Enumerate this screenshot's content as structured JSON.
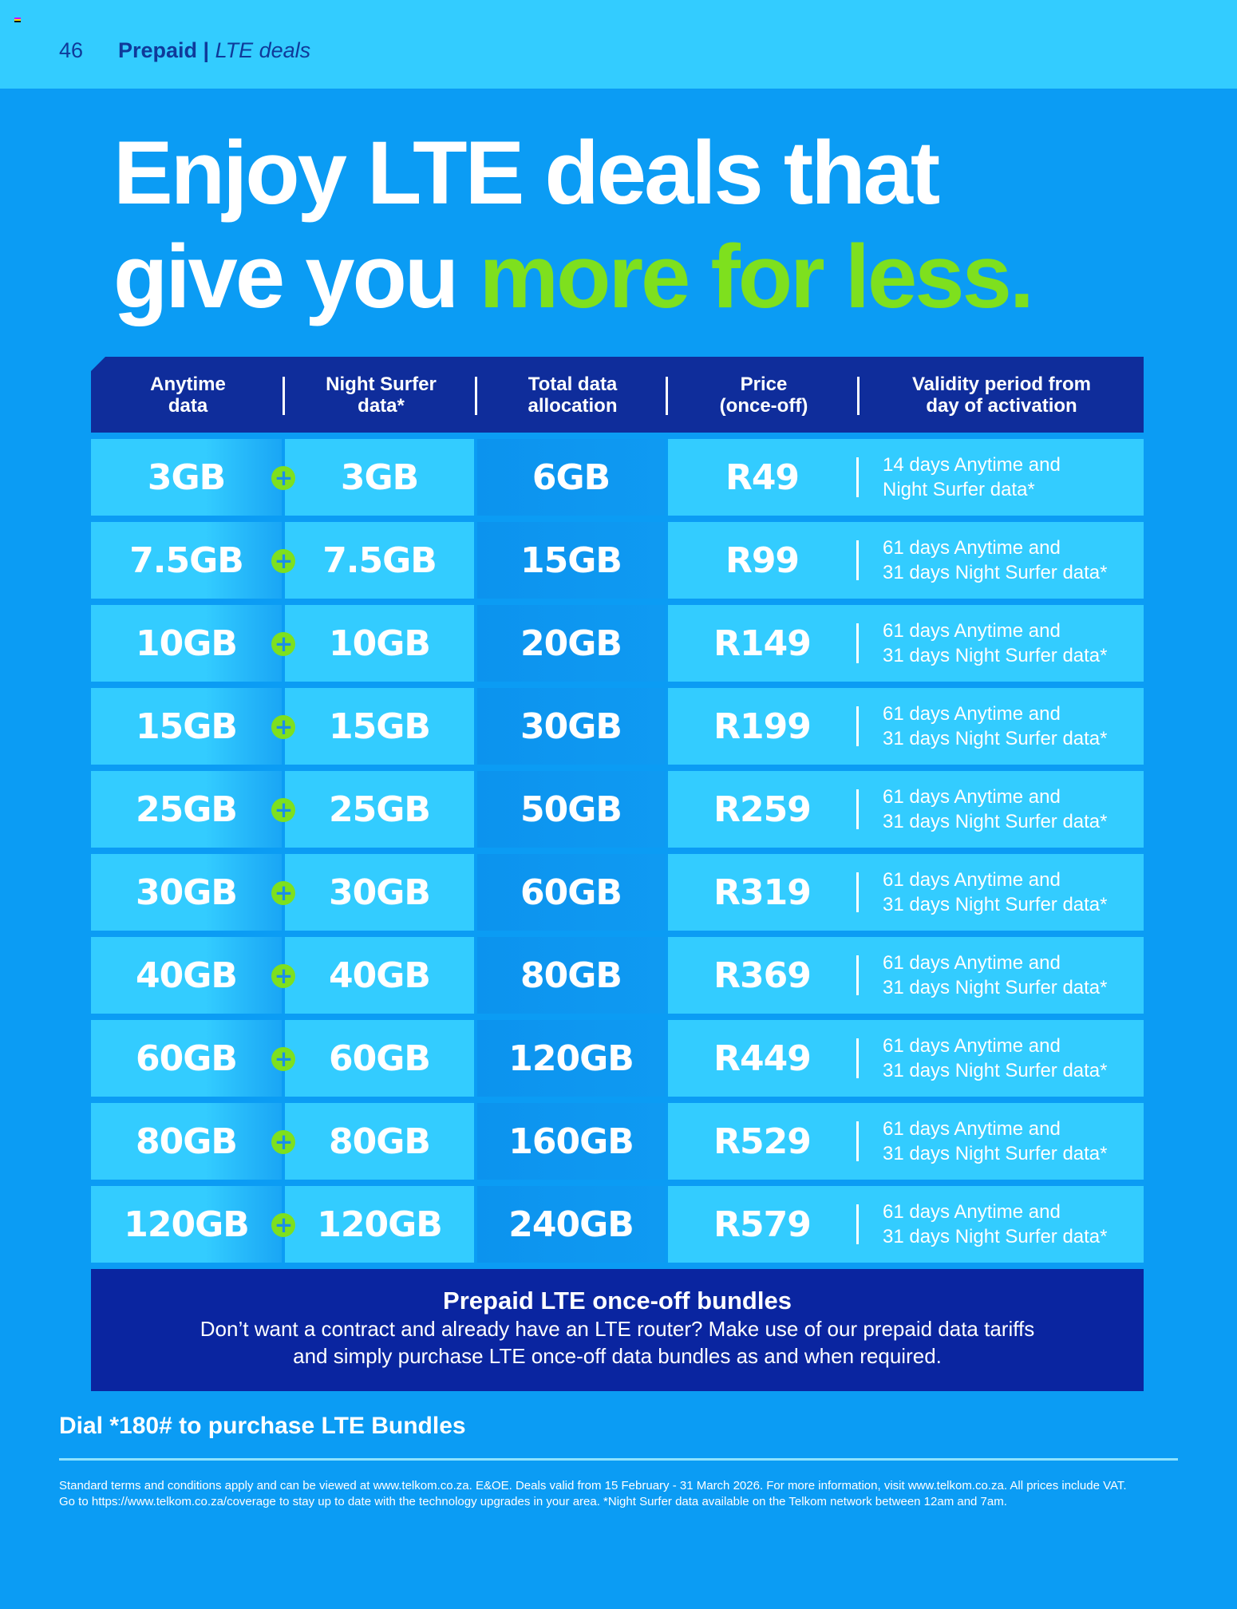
{
  "header": {
    "page_number": "46",
    "section": "Prepaid",
    "subsection": "LTE deals"
  },
  "headline": {
    "line1": "Enjoy LTE deals that",
    "line2_white": "give you",
    "line2_green": "more for less."
  },
  "colors": {
    "accent_green": "#7ee01e",
    "navy": "#0f2d9b",
    "sky": "#33ccff",
    "page_blue": "#0b9cf4"
  },
  "table": {
    "columns": [
      "Anytime data",
      "Night Surfer data*",
      "Total data allocation",
      "Price (once-off)",
      "Validity period from day of activation"
    ],
    "columns_lines": [
      [
        "Anytime",
        "data"
      ],
      [
        "Night Surfer",
        "data*"
      ],
      [
        "Total data",
        "allocation"
      ],
      [
        "Price",
        "(once-off)"
      ],
      [
        "Validity period from",
        "day of activation"
      ]
    ],
    "plus_icon": "plus-circle-icon",
    "rows": [
      {
        "anytime": "3GB",
        "night": "3GB",
        "total": "6GB",
        "price": "R49",
        "validity1": "14 days Anytime and",
        "validity2": "Night Surfer data*"
      },
      {
        "anytime": "7.5GB",
        "night": "7.5GB",
        "total": "15GB",
        "price": "R99",
        "validity1": "61 days Anytime and",
        "validity2": "31 days Night Surfer data*"
      },
      {
        "anytime": "10GB",
        "night": "10GB",
        "total": "20GB",
        "price": "R149",
        "validity1": "61 days Anytime and",
        "validity2": "31 days Night Surfer data*"
      },
      {
        "anytime": "15GB",
        "night": "15GB",
        "total": "30GB",
        "price": "R199",
        "validity1": "61 days Anytime and",
        "validity2": "31 days Night Surfer data*"
      },
      {
        "anytime": "25GB",
        "night": "25GB",
        "total": "50GB",
        "price": "R259",
        "validity1": "61 days Anytime and",
        "validity2": "31 days Night Surfer data*"
      },
      {
        "anytime": "30GB",
        "night": "30GB",
        "total": "60GB",
        "price": "R319",
        "validity1": "61 days Anytime and",
        "validity2": "31 days Night Surfer data*"
      },
      {
        "anytime": "40GB",
        "night": "40GB",
        "total": "80GB",
        "price": "R369",
        "validity1": "61 days Anytime and",
        "validity2": "31 days Night Surfer data*"
      },
      {
        "anytime": "60GB",
        "night": "60GB",
        "total": "120GB",
        "price": "R449",
        "validity1": "61 days Anytime and",
        "validity2": "31 days Night Surfer data*"
      },
      {
        "anytime": "80GB",
        "night": "80GB",
        "total": "160GB",
        "price": "R529",
        "validity1": "61 days Anytime and",
        "validity2": "31 days Night Surfer data*"
      },
      {
        "anytime": "120GB",
        "night": "120GB",
        "total": "240GB",
        "price": "R579",
        "validity1": "61 days Anytime and",
        "validity2": "31 days Night Surfer data*"
      }
    ]
  },
  "info_box": {
    "title": "Prepaid LTE once-off bundles",
    "line1": "Don’t want a contract and already have an LTE router? Make use of our prepaid data tariffs",
    "line2": "and simply purchase LTE once-off data bundles as and when required."
  },
  "dial": "Dial *180# to purchase LTE Bundles",
  "footer": {
    "line1": "Standard terms and conditions apply and can be viewed at www.telkom.co.za. E&OE. Deals valid from 15 February - 31 March 2026. For more information, visit www.telkom.co.za. All prices include VAT.",
    "line2": "Go to https://www.telkom.co.za/coverage to stay up to date with the technology upgrades in your area. *Night Surfer data available on the Telkom network between 12am and 7am."
  }
}
